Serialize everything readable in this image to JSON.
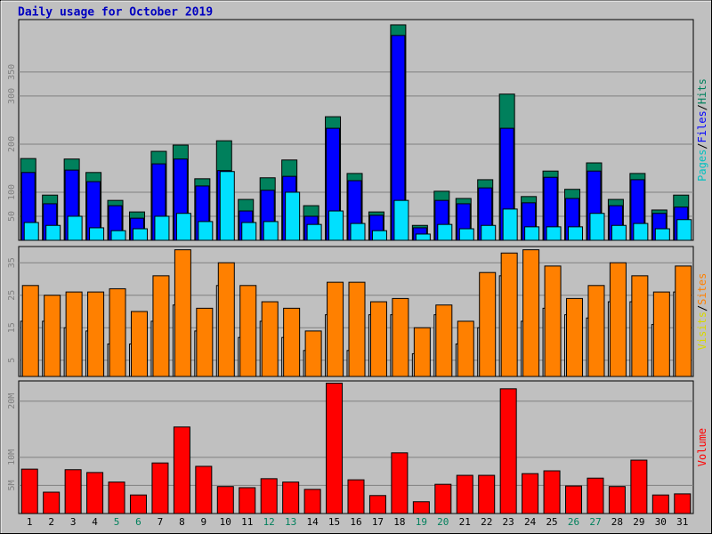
{
  "title": "Daily usage for October 2019",
  "chart_data": [
    {
      "type": "bar",
      "categories": [
        "1",
        "2",
        "3",
        "4",
        "5",
        "6",
        "7",
        "8",
        "9",
        "10",
        "11",
        "12",
        "13",
        "14",
        "15",
        "16",
        "17",
        "18",
        "19",
        "20",
        "21",
        "22",
        "23",
        "24",
        "25",
        "26",
        "27",
        "28",
        "29",
        "30",
        "31"
      ],
      "category_colors": [
        "#000000",
        "#000000",
        "#000000",
        "#000000",
        "#00805c",
        "#00805c",
        "#000000",
        "#000000",
        "#000000",
        "#000000",
        "#000000",
        "#00805c",
        "#00805c",
        "#000000",
        "#000000",
        "#000000",
        "#000000",
        "#000000",
        "#00805c",
        "#00805c",
        "#000000",
        "#000000",
        "#000000",
        "#000000",
        "#000000",
        "#00805c",
        "#00805c",
        "#000000",
        "#000000",
        "#000000",
        "#000000"
      ],
      "label_separator": "/",
      "series": [
        {
          "name": "Pages",
          "color": "#00e0ff",
          "label_color": "#00c0c0",
          "values": [
            37,
            31,
            50,
            26,
            20,
            24,
            50,
            56,
            39,
            143,
            37,
            39,
            100,
            33,
            61,
            35,
            20,
            83,
            13,
            33,
            24,
            31,
            65,
            28,
            28,
            28,
            56,
            31,
            35,
            24,
            43
          ]
        },
        {
          "name": "Files",
          "color": "#0000ff",
          "label_color": "#0000ff",
          "values": [
            141,
            76,
            146,
            122,
            72,
            46,
            159,
            169,
            113,
            145,
            61,
            104,
            133,
            50,
            233,
            124,
            52,
            426,
            26,
            83,
            76,
            109,
            233,
            78,
            131,
            87,
            144,
            72,
            126,
            56,
            69
          ]
        },
        {
          "name": "Hits",
          "color": "#00805c",
          "label_color": "#00805c",
          "values": [
            170,
            94,
            169,
            141,
            83,
            59,
            185,
            198,
            128,
            207,
            85,
            130,
            167,
            72,
            257,
            139,
            59,
            448,
            31,
            102,
            87,
            126,
            304,
            91,
            144,
            106,
            161,
            85,
            139,
            63,
            94
          ]
        }
      ],
      "ylim": [
        0,
        459
      ],
      "yticks": [
        50,
        100,
        200,
        300,
        350
      ],
      "grid": true
    },
    {
      "type": "bar",
      "label_separator": "/",
      "series": [
        {
          "name": "Visits",
          "color": "#c0c0c0",
          "label_color": "#d8d800",
          "values": [
            17,
            17,
            15,
            14,
            10,
            10,
            17,
            22,
            14,
            28,
            12,
            17,
            12,
            8,
            19,
            8,
            19,
            19,
            7,
            19,
            10,
            15,
            31,
            17,
            21,
            19,
            18,
            23,
            23,
            16,
            26
          ]
        },
        {
          "name": "Sites",
          "color": "#ff8000",
          "label_color": "#ff8000",
          "values": [
            28,
            25,
            26,
            26,
            27,
            20,
            31,
            39,
            21,
            35,
            28,
            23,
            21,
            14,
            29,
            29,
            23,
            24,
            15,
            22,
            17,
            32,
            38,
            39,
            34,
            24,
            28,
            35,
            31,
            26,
            34
          ]
        }
      ],
      "ylim": [
        0,
        40
      ],
      "yticks": [
        5,
        15,
        25,
        35
      ],
      "grid": true
    },
    {
      "type": "bar",
      "series": [
        {
          "name": "Volume",
          "color": "#ff0000",
          "label_color": "#ff0000",
          "values": [
            7.9,
            3.8,
            7.8,
            7.3,
            5.6,
            3.3,
            9.0,
            15.4,
            8.4,
            4.8,
            4.6,
            6.2,
            5.6,
            4.3,
            23.2,
            6.0,
            3.2,
            10.8,
            2.1,
            5.2,
            6.8,
            6.8,
            22.2,
            7.1,
            7.6,
            4.9,
            6.3,
            4.8,
            9.5,
            3.3,
            3.5
          ]
        }
      ],
      "ylim": [
        0,
        23.6
      ],
      "yticks": [
        {
          "value": 5,
          "label": "5M"
        },
        {
          "value": 10,
          "label": "10M"
        },
        {
          "value": 20,
          "label": "20M"
        }
      ],
      "grid": true
    }
  ]
}
